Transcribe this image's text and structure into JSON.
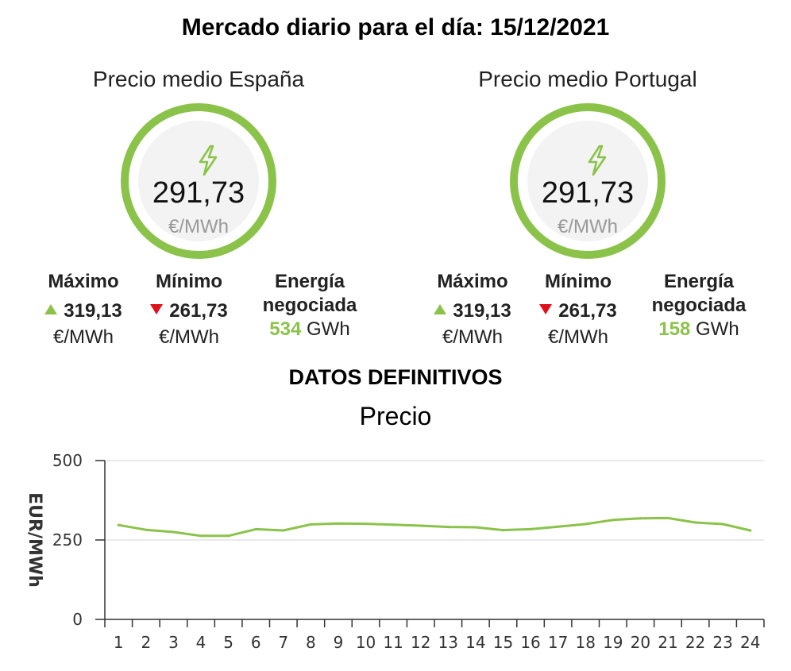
{
  "page": {
    "title": "Mercado diario para el día: 15/12/2021"
  },
  "colors": {
    "accent": "#8bc34a",
    "down": "#e0101c",
    "gauge_bg": "#f3f3f3"
  },
  "icons": {
    "gauge": "lightning-bolt-icon",
    "max": "triangle-up-icon",
    "min": "triangle-down-icon"
  },
  "spain": {
    "title": "Precio medio España",
    "price": "291,73",
    "unit": "€/MWh",
    "max_label": "Máximo",
    "max_value": "319,13",
    "max_unit": "€/MWh",
    "min_label": "Mínimo",
    "min_value": "261,73",
    "min_unit": "€/MWh",
    "energy_label_1": "Energía",
    "energy_label_2": "negociada",
    "energy_value": "534",
    "energy_unit": "GWh"
  },
  "portugal": {
    "title": "Precio medio Portugal",
    "price": "291,73",
    "unit": "€/MWh",
    "max_label": "Máximo",
    "max_value": "319,13",
    "max_unit": "€/MWh",
    "min_label": "Mínimo",
    "min_value": "261,73",
    "min_unit": "€/MWh",
    "energy_label_1": "Energía",
    "energy_label_2": "negociada",
    "energy_value": "158",
    "energy_unit": "GWh"
  },
  "section": {
    "title": "DATOS DEFINITIVOS"
  },
  "chart_data": {
    "type": "line",
    "title": "Precio",
    "xlabel": "",
    "ylabel": "EUR/MWh",
    "x": [
      1,
      2,
      3,
      4,
      5,
      6,
      7,
      8,
      9,
      10,
      11,
      12,
      13,
      14,
      15,
      16,
      17,
      18,
      19,
      20,
      21,
      22,
      23,
      24
    ],
    "series": [
      {
        "values": [
          297,
          282,
          275,
          263,
          263,
          284,
          280,
          299,
          302,
          301,
          298,
          295,
          291,
          290,
          281,
          284,
          292,
          300,
          313,
          318,
          319,
          305,
          300,
          280
        ],
        "color": "#8bc34a"
      }
    ],
    "ylim": [
      0,
      500
    ],
    "yticks": [
      0,
      250,
      500
    ],
    "grid": true,
    "legend": "none"
  }
}
